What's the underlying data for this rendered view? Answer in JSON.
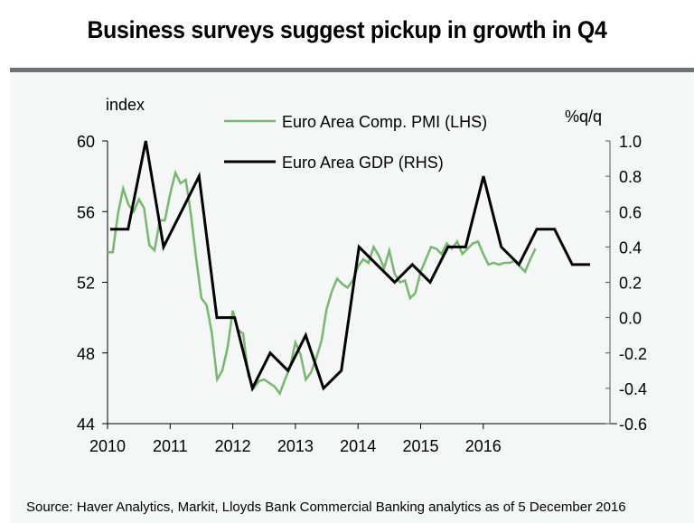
{
  "chart_data": {
    "type": "line",
    "title": "Business surveys suggest pickup in growth in Q4",
    "left_axis": {
      "label": "index",
      "range": [
        44,
        60
      ],
      "ticks": [
        "60",
        "56",
        "52",
        "48",
        "44"
      ],
      "tick_values": [
        60,
        56,
        52,
        48,
        44
      ]
    },
    "right_axis": {
      "label": "%q/q",
      "range": [
        -0.6,
        1.0
      ],
      "ticks": [
        "1.0",
        "0.8",
        "0.6",
        "0.4",
        "0.2",
        "0.0",
        "-0.2",
        "-0.4",
        "-0.6"
      ],
      "tick_values": [
        1.0,
        0.8,
        0.6,
        0.4,
        0.2,
        0.0,
        -0.2,
        -0.4,
        -0.6
      ]
    },
    "x_axis": {
      "ticks": [
        "2010",
        "2011",
        "2012",
        "2013",
        "2014",
        "2015",
        "2016"
      ],
      "range": [
        2010,
        2016.92
      ]
    },
    "legend": {
      "placement": "top-center",
      "entries": [
        "Euro Area Comp. PMI (LHS)",
        "Euro Area GDP (RHS)"
      ]
    },
    "series": [
      {
        "name": "Euro Area Comp. PMI (LHS)",
        "axis": "left",
        "frequency": "monthly",
        "start": "2010-01",
        "color": "#76b86d",
        "values": [
          53.7,
          53.7,
          55.9,
          57.3,
          56.4,
          56.0,
          56.7,
          56.2,
          54.1,
          53.8,
          55.5,
          55.5,
          57.0,
          58.2,
          57.6,
          57.8,
          55.8,
          53.3,
          51.1,
          50.7,
          49.1,
          46.5,
          47.0,
          48.3,
          50.4,
          49.3,
          49.1,
          46.7,
          46.0,
          46.4,
          46.5,
          46.3,
          46.1,
          45.7,
          46.5,
          47.2,
          48.6,
          47.9,
          46.5,
          46.9,
          47.7,
          48.7,
          50.5,
          51.5,
          52.2,
          51.9,
          51.7,
          52.1,
          52.9,
          53.3,
          53.1,
          54.0,
          53.5,
          52.8,
          53.8,
          52.5,
          52.0,
          52.1,
          51.1,
          51.4,
          52.6,
          53.3,
          54.0,
          53.9,
          53.6,
          54.2,
          53.9,
          54.3,
          53.6,
          53.9,
          54.2,
          54.3,
          53.6,
          53.0,
          53.1,
          53.0,
          53.1,
          53.1,
          53.2,
          52.9,
          52.6,
          53.3,
          53.9
        ]
      },
      {
        "name": "Euro Area GDP (RHS)",
        "axis": "right",
        "frequency": "quarterly",
        "start": "2010-Q1",
        "color": "#000000",
        "values": [
          0.5,
          0.5,
          1.0,
          0.4,
          0.6,
          0.8,
          0.0,
          0.0,
          -0.4,
          -0.2,
          -0.3,
          -0.1,
          -0.4,
          -0.3,
          0.4,
          0.3,
          0.2,
          0.3,
          0.2,
          0.4,
          0.4,
          0.8,
          0.4,
          0.3,
          0.5,
          0.5,
          0.3,
          0.3
        ]
      }
    ]
  },
  "source_note": "Source: Haver Analytics, Markit, Lloyds Bank Commercial Banking analytics as of 5 December 2016"
}
